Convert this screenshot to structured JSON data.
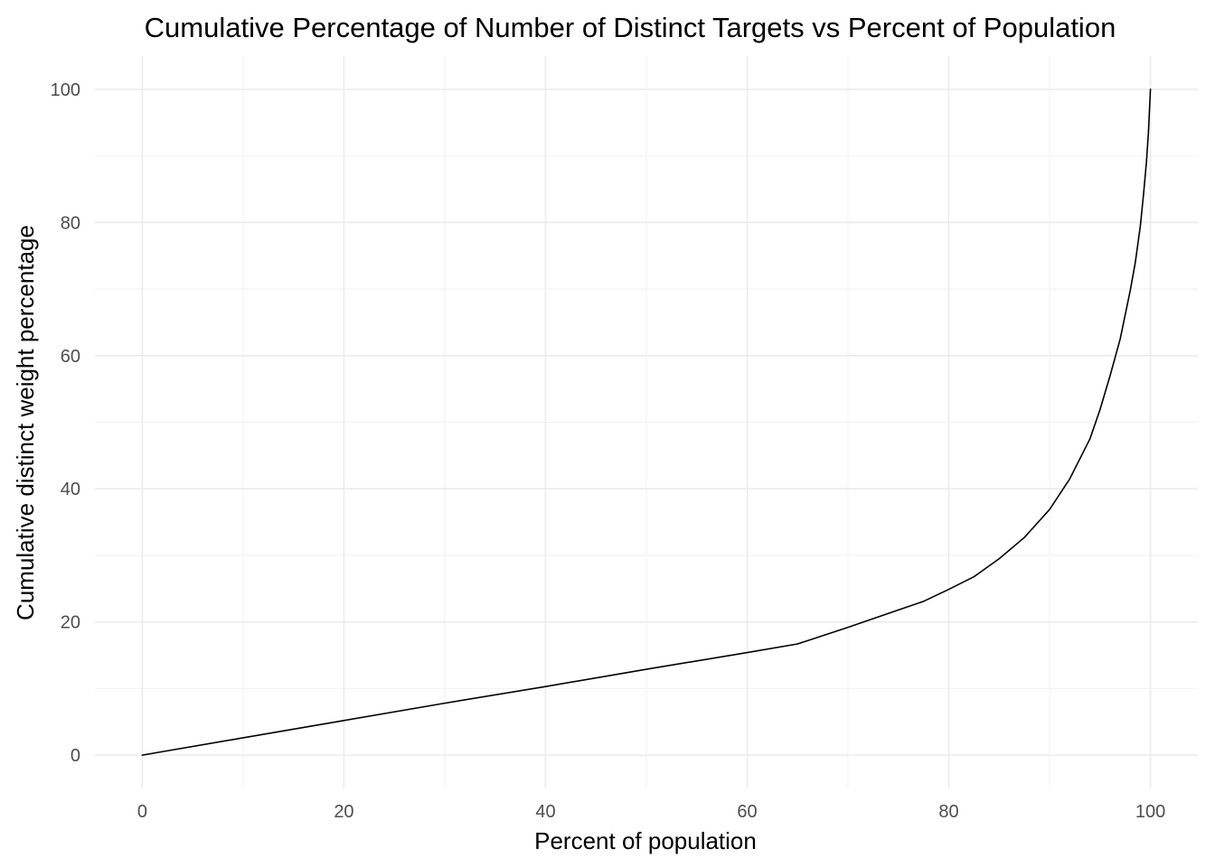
{
  "chart_data": {
    "type": "line",
    "title": "Cumulative Percentage of Number of Distinct Targets vs Percent of Population",
    "xlabel": "Percent of population",
    "ylabel": "Cumulative distinct weight percentage",
    "xlim": [
      -4.7,
      104.7
    ],
    "ylim": [
      -5,
      105
    ],
    "x_ticks": [
      0,
      20,
      40,
      60,
      80,
      100
    ],
    "y_ticks": [
      0,
      20,
      40,
      60,
      80,
      100
    ],
    "x_minor_ticks": [
      10,
      30,
      50,
      70,
      90
    ],
    "y_minor_ticks": [
      10,
      30,
      50,
      70,
      90
    ],
    "grid": true,
    "legend": "none",
    "series": [
      {
        "color": "#000000",
        "x": [
          0,
          10,
          20,
          30,
          40,
          50,
          60,
          65,
          70,
          75,
          77.5,
          80,
          82.5,
          85,
          87.5,
          90,
          92,
          94,
          95,
          96,
          97,
          98,
          98.5,
          99,
          99.3,
          99.6,
          99.8,
          100
        ],
        "y": [
          0,
          2.6,
          5.2,
          7.8,
          10.3,
          12.9,
          15.4,
          16.7,
          19.2,
          21.8,
          23.1,
          24.9,
          26.8,
          29.5,
          32.7,
          36.9,
          41.5,
          47.5,
          51.9,
          57.0,
          62.5,
          69.8,
          74.0,
          79.5,
          84.0,
          89.0,
          93.5,
          100
        ]
      }
    ]
  }
}
